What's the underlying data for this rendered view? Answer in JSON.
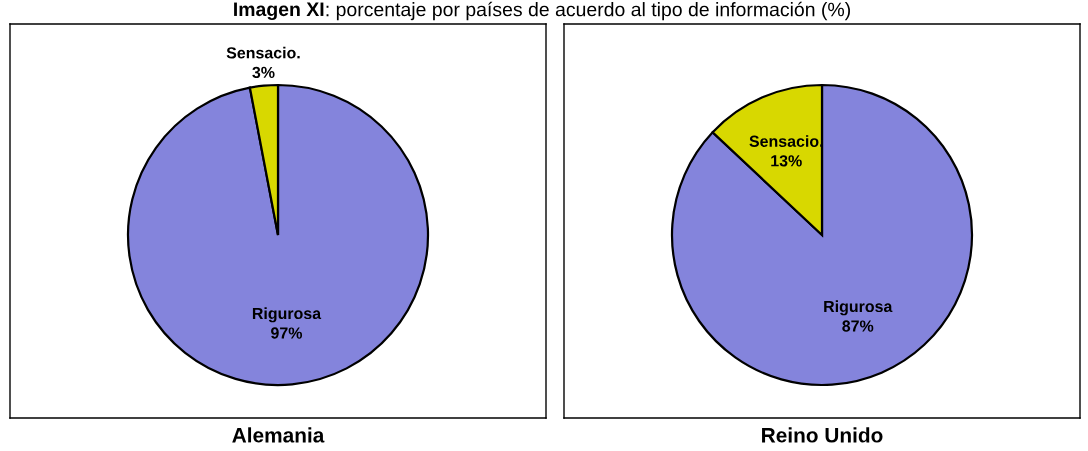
{
  "chart_data": [
    {
      "type": "pie",
      "title": "Imagen XI: porcentaje por países de acuerdo al tipo de información (%)",
      "xlabel": "Alemania",
      "categories": [
        "Rigurosa",
        "Sensacio."
      ],
      "values": [
        97,
        3
      ],
      "value_labels": [
        "97%",
        "3%"
      ],
      "colors": [
        "#8484dc",
        "#d8d800"
      ]
    },
    {
      "type": "pie",
      "xlabel": "Reino Unido",
      "categories": [
        "Rigurosa",
        "Sensacio."
      ],
      "values": [
        87,
        13
      ],
      "value_labels": [
        "87%",
        "13%"
      ],
      "colors": [
        "#8484dc",
        "#d8d800"
      ]
    }
  ]
}
